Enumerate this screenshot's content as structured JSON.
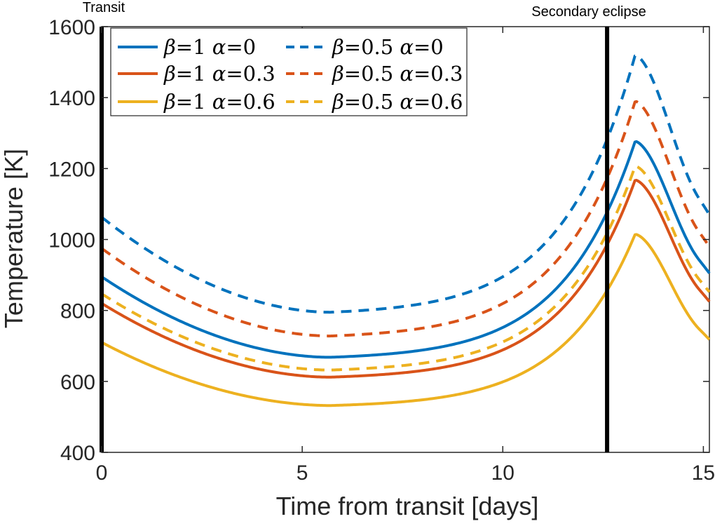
{
  "chart_data": {
    "type": "line",
    "title": "",
    "xlabel": "Time from transit [days]",
    "ylabel": "Temperature [K]",
    "xlim": [
      0,
      15.15
    ],
    "ylim": [
      400,
      1600
    ],
    "xticks": [
      0,
      5,
      10,
      15
    ],
    "yticks": [
      400,
      600,
      800,
      1000,
      1200,
      1400,
      1600
    ],
    "xtick_labels": [
      "0",
      "5",
      "10",
      "15"
    ],
    "ytick_labels": [
      "400",
      "600",
      "800",
      "1000",
      "1200",
      "1400",
      "1600"
    ],
    "grid": false,
    "legend_location": "top-left",
    "annotations": [
      {
        "label": "Transit",
        "x": 0
      },
      {
        "label": "Secondary eclipse",
        "x": 12.6
      }
    ],
    "vertical_lines": [
      0,
      12.6
    ],
    "curve_model": {
      "t_min": 5.7,
      "t_peak": 13.3,
      "period": 15.15
    },
    "series": [
      {
        "name": "β=1 α=0",
        "beta": "1",
        "alpha": "0",
        "color": "#0072BD",
        "dash": "solid",
        "values_at": {
          "start": 895,
          "min": 668,
          "peak": 1277,
          "end": 905
        }
      },
      {
        "name": "β=1 α=0.3",
        "beta": "1",
        "alpha": "0.3",
        "color": "#D95319",
        "dash": "solid",
        "values_at": {
          "start": 820,
          "min": 612,
          "peak": 1168,
          "end": 825
        }
      },
      {
        "name": "β=1 α=0.6",
        "beta": "1",
        "alpha": "0.6",
        "color": "#EDB120",
        "dash": "solid",
        "values_at": {
          "start": 710,
          "min": 532,
          "peak": 1015,
          "end": 718
        }
      },
      {
        "name": "β=0.5 α=0",
        "beta": "0.5",
        "alpha": "0",
        "color": "#0072BD",
        "dash": "dashed",
        "values_at": {
          "start": 1063,
          "min": 795,
          "peak": 1520,
          "end": 1070
        }
      },
      {
        "name": "β=0.5 α=0.3",
        "beta": "0.5",
        "alpha": "0.3",
        "color": "#D95319",
        "dash": "dashed",
        "values_at": {
          "start": 975,
          "min": 728,
          "peak": 1390,
          "end": 980
        }
      },
      {
        "name": "β=0.5 α=0.6",
        "beta": "0.5",
        "alpha": "0.6",
        "color": "#EDB120",
        "dash": "dashed",
        "values_at": {
          "start": 847,
          "min": 632,
          "peak": 1207,
          "end": 852
        }
      }
    ]
  }
}
